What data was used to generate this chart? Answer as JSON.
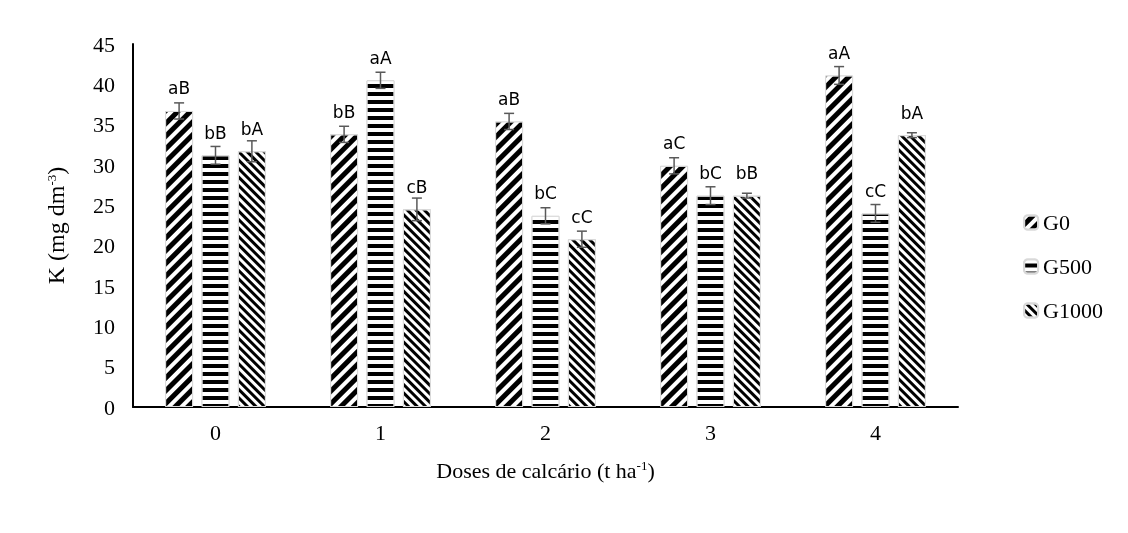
{
  "chart_data": {
    "type": "bar",
    "xlabel": "Doses de calcário (t ha$^{-1}$)",
    "ylabel": "K (mg dm$^{-3}$)",
    "categories": [
      "0",
      "1",
      "2",
      "3",
      "4"
    ],
    "series": [
      {
        "name": "G0",
        "color": "#000000",
        "values": [
          36.7,
          33.8,
          35.4,
          29.9,
          41.1
        ],
        "errors": [
          1,
          1,
          1,
          1,
          1.1
        ],
        "value_labels": [
          "aB",
          "bB",
          "aB",
          "aC",
          "aA"
        ]
      },
      {
        "name": "G500",
        "color": "#000000",
        "values": [
          31.2,
          40.5,
          23.7,
          26.2,
          24.0
        ],
        "errors": [
          1.1,
          1,
          1,
          1.1,
          1.1
        ],
        "value_labels": [
          "bB",
          "aA",
          "bC",
          "bC",
          "cC"
        ]
      },
      {
        "name": "G1000",
        "color": "#000000",
        "values": [
          31.7,
          24.5,
          20.8,
          26.2,
          33.7
        ],
        "errors": [
          1.3,
          1.4,
          1,
          0.3,
          0.3
        ],
        "value_labels": [
          "bA",
          "cB",
          "cC",
          "bB",
          "bA"
        ]
      }
    ],
    "ylim": [
      0,
      45
    ],
    "yticks": [
      0,
      5,
      10,
      15,
      20,
      25,
      30,
      35,
      40,
      45
    ],
    "grid": false,
    "legend": "right"
  }
}
